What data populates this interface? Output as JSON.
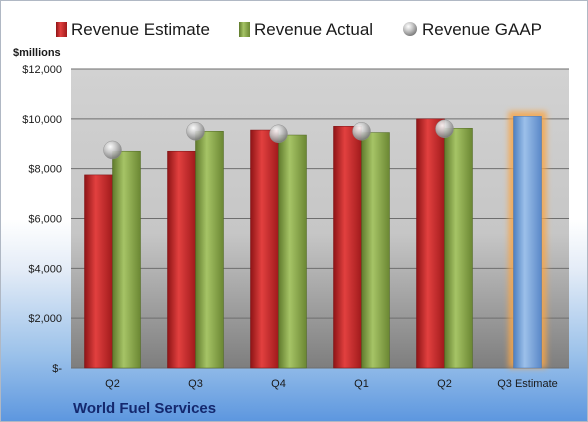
{
  "company": "World Fuel Services",
  "unit_label": "$millions",
  "colors": {
    "estimate": "#c0282a",
    "actual": "#8aa84c",
    "gaap": "#b4b4b4",
    "highlight_bar": "#7aa4d8",
    "highlight_glow": "#f7a64a"
  },
  "chart_data": {
    "type": "bar",
    "categories": [
      "Q2",
      "Q3",
      "Q4",
      "Q1",
      "Q2",
      "Q3 Estimate"
    ],
    "series": [
      {
        "name": "Revenue Estimate",
        "values": [
          7750,
          8700,
          9550,
          9700,
          10000,
          10100
        ]
      },
      {
        "name": "Revenue Actual",
        "values": [
          8700,
          9500,
          9350,
          9450,
          9620,
          null
        ]
      },
      {
        "name": "Revenue GAAP",
        "values": [
          8750,
          9500,
          9400,
          9500,
          9600,
          null
        ]
      }
    ],
    "ylim": [
      0,
      12000
    ],
    "yticks": [
      0,
      2000,
      4000,
      6000,
      8000,
      10000,
      12000
    ],
    "ytick_labels": [
      "$-",
      "$2,000",
      "$4,000",
      "$6,000",
      "$8,000",
      "$10,000",
      "$12,000"
    ],
    "grid": true,
    "legend_position": "top"
  }
}
